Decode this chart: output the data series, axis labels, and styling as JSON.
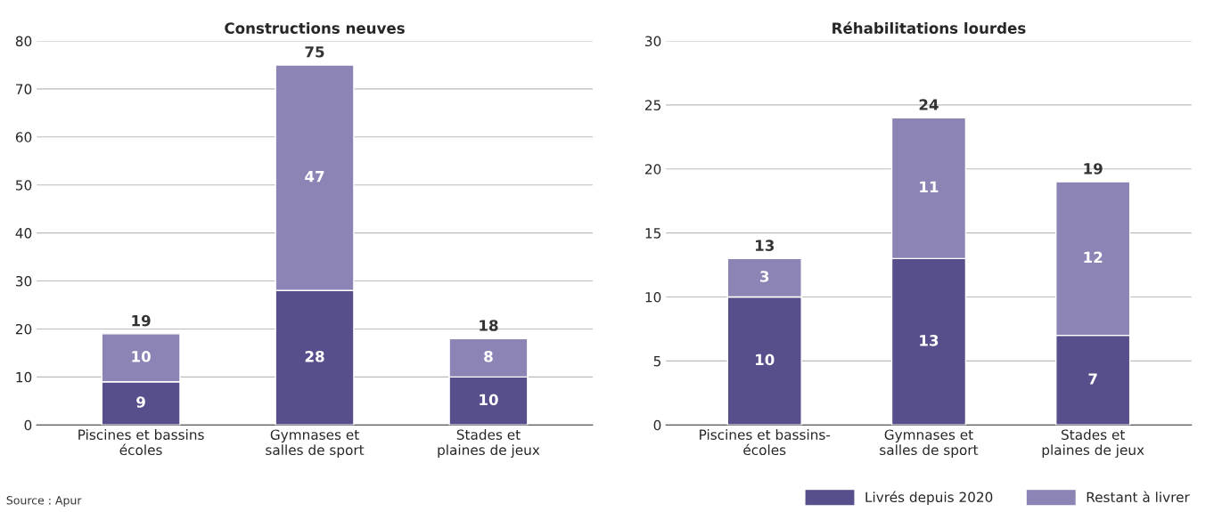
{
  "chart_data": [
    {
      "type": "bar",
      "title": "Constructions neuves",
      "categories": [
        "Piscines et bassins\nécoles",
        "Gymnases et\nsalles de sport",
        "Stades et\nplaines de jeux"
      ],
      "stacked": true,
      "series": [
        {
          "color": "#574f8b",
          "values": [
            9,
            28,
            10
          ]
        },
        {
          "color": "#8b84b5",
          "values": [
            10,
            47,
            8
          ]
        }
      ],
      "ylim": [
        0,
        80
      ],
      "yticks": [
        0,
        10,
        20,
        30,
        40,
        50,
        60,
        70,
        80
      ],
      "grid": "y",
      "data_labels": true,
      "totals": [
        "19",
        "75",
        "18"
      ],
      "annotations": [
        "Source : Apur"
      ]
    },
    {
      "type": "bar",
      "title": "Réhabilitations lourdes",
      "categories": [
        "Piscines et bassins-\nécoles",
        "Gymnases et\nsalles de sport",
        "Stades et\nplaines de jeux"
      ],
      "stacked": true,
      "series": [
        {
          "name": "Livrés depuis 2020",
          "color": "#574f8b",
          "values": [
            10,
            13,
            7
          ]
        },
        {
          "name": "Restant à livrer",
          "color": "#8b84b5",
          "values": [
            3,
            11,
            12
          ]
        }
      ],
      "ylim": [
        0,
        30
      ],
      "yticks": [
        0,
        5,
        10,
        15,
        20,
        25,
        30
      ],
      "grid": "y",
      "data_labels": true,
      "totals": [
        "13",
        "24",
        "19"
      ],
      "legend": "bottom right"
    }
  ]
}
